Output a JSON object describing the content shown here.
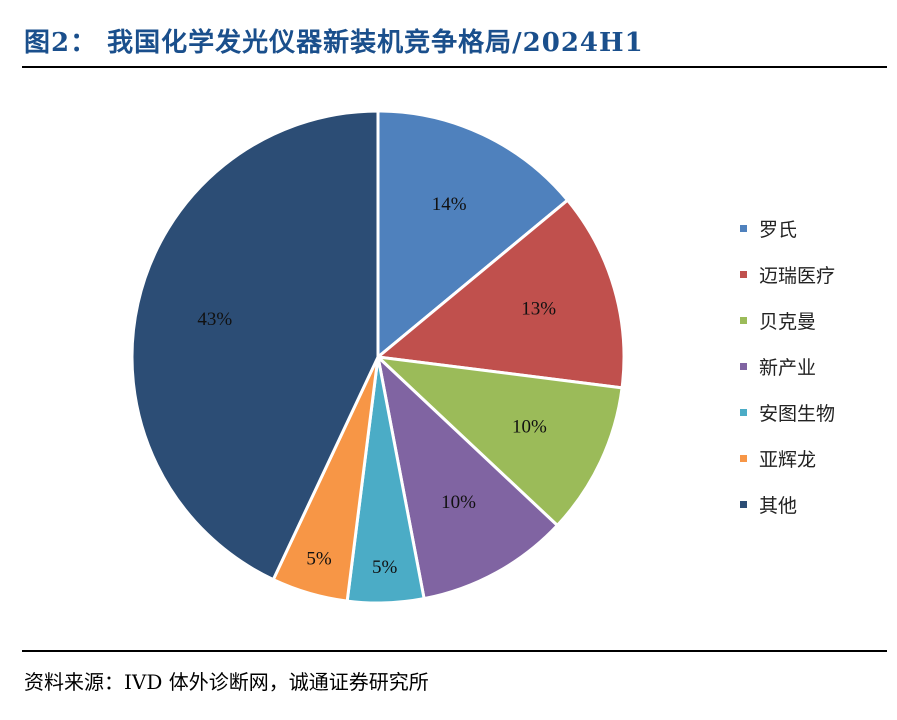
{
  "header": {
    "title": "图2：  我国化学发光仪器新装机竞争格局/2024H1"
  },
  "footer": {
    "source": "资料来源：IVD 体外诊断网，诚通证券研究所"
  },
  "chart_data": {
    "type": "pie",
    "categories": [
      "罗氏",
      "迈瑞医疗",
      "贝克曼",
      "新产业",
      "安图生物",
      "亚辉龙",
      "其他"
    ],
    "values": [
      14,
      13,
      10,
      10,
      5,
      5,
      43
    ],
    "labels": [
      "14%",
      "13%",
      "10%",
      "10%",
      "5%",
      "5%",
      "43%"
    ],
    "colors": [
      "#4f81bd",
      "#c0504d",
      "#9bbb59",
      "#8064a2",
      "#4bacc6",
      "#f79646",
      "#2c4d75"
    ],
    "legend_position": "right"
  }
}
